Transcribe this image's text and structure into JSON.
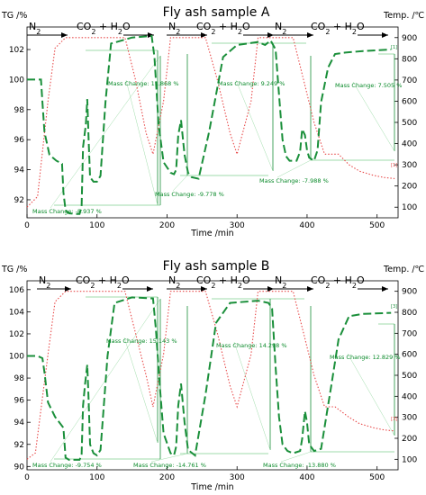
{
  "chart_data": [
    {
      "type": "line",
      "title": "Fly ash sample A",
      "xlabel": "Time /min",
      "ylabel": "TG /%",
      "y2label": "Temp. /℃",
      "xlim": [
        0,
        530
      ],
      "ylim": [
        90.8,
        103.5
      ],
      "y2lim": [
        50,
        950
      ],
      "xticks": [
        "0",
        "100",
        "200",
        "300",
        "400",
        "500"
      ],
      "yticks": [
        "92",
        "94",
        "96",
        "98",
        "100",
        "102"
      ],
      "y2ticks": [
        "100",
        "200",
        "300",
        "400",
        "500",
        "600",
        "700",
        "800",
        "900"
      ],
      "atmospheres": [
        "N2",
        "CO2 + H2O",
        "N2",
        "CO2 + H2O",
        "N2",
        "CO2 + H2O"
      ],
      "end_tags": [
        "[1]",
        "[1]"
      ],
      "series": [
        {
          "color": "#1a8f3a",
          "style": "dashed",
          "x": [
            0,
            20,
            22,
            25,
            32,
            42,
            50,
            52,
            55,
            60,
            70,
            75,
            78,
            80,
            84,
            86,
            88,
            90,
            95,
            100,
            105,
            112,
            120,
            150,
            178,
            182,
            188,
            195,
            205,
            210,
            213,
            216,
            220,
            225,
            230,
            235,
            245,
            260,
            280,
            300,
            330,
            340,
            348,
            355,
            360,
            365,
            370,
            375,
            385,
            390,
            393,
            397,
            400,
            403,
            410,
            415,
            420,
            430,
            440,
            455,
            480,
            520
          ],
          "y": [
            100.0,
            100.0,
            98.5,
            96.5,
            95.0,
            94.6,
            94.4,
            92.5,
            91.3,
            91.1,
            91.05,
            91.05,
            91.5,
            95.5,
            97.0,
            98.7,
            96.0,
            93.5,
            93.2,
            93.2,
            93.6,
            98.5,
            102.4,
            102.8,
            102.9,
            101.5,
            97.0,
            94.5,
            93.8,
            93.7,
            94.0,
            96.3,
            97.3,
            95.0,
            93.8,
            93.5,
            93.4,
            96.5,
            101.5,
            102.3,
            102.5,
            102.3,
            102.6,
            102.0,
            99.0,
            96.0,
            94.9,
            94.6,
            94.6,
            95.2,
            96.7,
            96.3,
            95.3,
            94.8,
            94.6,
            95.3,
            98.5,
            100.8,
            101.7,
            101.8,
            101.9,
            102.0
          ]
        },
        {
          "color": "#e84a4a",
          "style": "dotted",
          "axis": "right",
          "x": [
            0,
            15,
            30,
            40,
            55,
            140,
            155,
            170,
            180,
            195,
            205,
            255,
            272,
            290,
            300,
            320,
            330,
            380,
            395,
            410,
            425,
            445,
            460,
            475,
            495,
            510,
            525
          ],
          "y": [
            100,
            150,
            600,
            850,
            900,
            900,
            700,
            450,
            350,
            600,
            900,
            900,
            700,
            450,
            350,
            600,
            900,
            900,
            700,
            500,
            350,
            350,
            300,
            270,
            250,
            240,
            235
          ]
        }
      ],
      "annotations": [
        "Mass Change: -8.937 %",
        "Mass Change: 11.868 %",
        "Mass Change: -9.778 %",
        "Mass Change: 9.249 %",
        "Mass Change: -7.988 %",
        "Mass Change: 7.505 %"
      ]
    },
    {
      "type": "line",
      "title": "Fly ash sample B",
      "xlabel": "Time /min",
      "ylabel": "TG /%",
      "y2label": "Temp. /℃",
      "xlim": [
        0,
        530
      ],
      "ylim": [
        89.7,
        106.8
      ],
      "y2lim": [
        50,
        950
      ],
      "xticks": [
        "0",
        "100",
        "200",
        "300",
        "400",
        "500"
      ],
      "yticks": [
        "90",
        "92",
        "94",
        "96",
        "98",
        "100",
        "102",
        "104",
        "106"
      ],
      "y2ticks": [
        "100",
        "200",
        "300",
        "400",
        "500",
        "600",
        "700",
        "800",
        "900"
      ],
      "atmospheres": [
        "N2",
        "CO2 + H2O",
        "N2",
        "CO2 + H2O",
        "N2",
        "CO2 + H2O"
      ],
      "end_tags": [
        "[3]",
        "[3]"
      ],
      "series": [
        {
          "color": "#1a8f3a",
          "style": "dashed",
          "x": [
            0,
            15,
            22,
            25,
            30,
            40,
            52,
            55,
            60,
            70,
            75,
            78,
            80,
            83,
            86,
            88,
            90,
            95,
            100,
            105,
            115,
            125,
            150,
            180,
            184,
            190,
            195,
            205,
            210,
            213,
            216,
            220,
            225,
            230,
            240,
            255,
            270,
            290,
            330,
            345,
            350,
            355,
            360,
            365,
            372,
            380,
            390,
            393,
            397,
            400,
            403,
            410,
            420,
            435,
            445,
            460,
            480,
            520
          ],
          "y": [
            100.0,
            100.0,
            99.8,
            98.5,
            95.8,
            94.5,
            93.5,
            90.8,
            90.6,
            90.6,
            90.6,
            91.0,
            95.5,
            97.5,
            99.2,
            96.0,
            92.0,
            91.2,
            91.0,
            91.5,
            100.0,
            104.8,
            105.3,
            105.2,
            102.5,
            97.0,
            93.0,
            91.2,
            91.0,
            91.8,
            95.5,
            97.5,
            94.0,
            91.5,
            91.0,
            96.5,
            103.0,
            104.8,
            105.0,
            104.8,
            104.3,
            99.0,
            94.5,
            92.0,
            91.4,
            91.2,
            91.4,
            92.5,
            95.0,
            94.0,
            92.0,
            91.4,
            91.6,
            97.5,
            101.5,
            103.6,
            103.8,
            103.9
          ]
        },
        {
          "color": "#e84a4a",
          "style": "dotted",
          "axis": "right",
          "x": [
            0,
            12,
            30,
            40,
            55,
            140,
            155,
            170,
            180,
            195,
            205,
            255,
            272,
            290,
            300,
            320,
            330,
            380,
            395,
            410,
            425,
            440,
            460,
            475,
            495,
            510,
            525
          ],
          "y": [
            100,
            130,
            600,
            850,
            900,
            900,
            700,
            500,
            350,
            600,
            900,
            900,
            700,
            450,
            350,
            600,
            900,
            900,
            700,
            500,
            350,
            350,
            300,
            270,
            250,
            240,
            235
          ]
        }
      ],
      "annotations": [
        "Mass Change: -9.754 %",
        "Mass Change: 15.143 %",
        "Mass Change: -14.761 %",
        "Mass Change: 14.298 %",
        "Mass Change: -13.880 %",
        "Mass Change: 12.829 %"
      ]
    }
  ]
}
